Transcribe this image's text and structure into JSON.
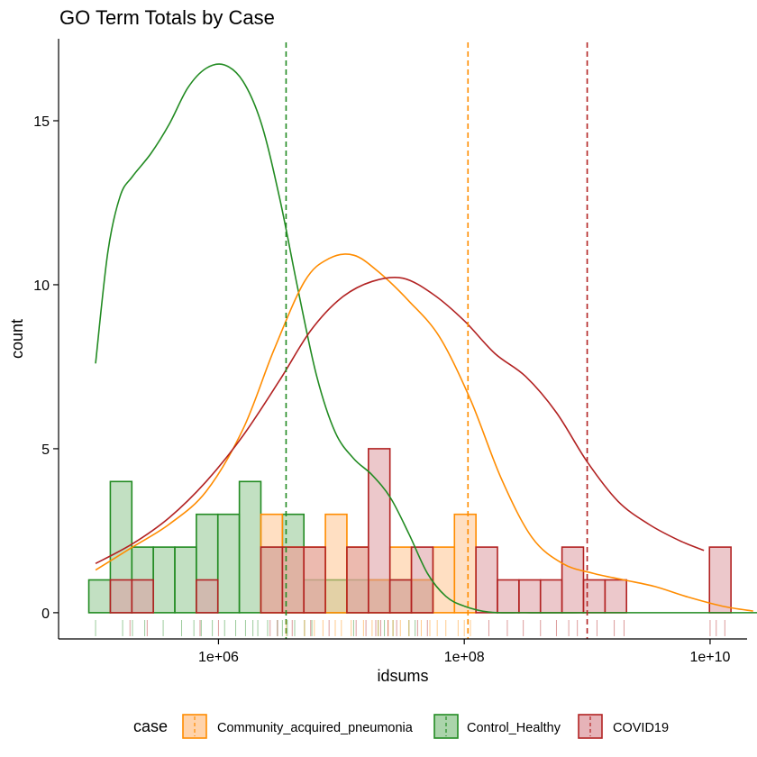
{
  "chart_data": {
    "type": "histogram",
    "title": "GO Term Totals by Case",
    "xlabel": "idsums",
    "ylabel": "count",
    "x_scale": "log10",
    "xlim": [
      50000,
      20000000000
    ],
    "ylim": [
      -0.8,
      17.5
    ],
    "x_ticks": [
      {
        "value": 1000000,
        "label": "1e+06"
      },
      {
        "value": 100000000,
        "label": "1e+08"
      },
      {
        "value": 10000000000,
        "label": "1e+10"
      }
    ],
    "y_ticks": [
      {
        "value": 0,
        "label": "0"
      },
      {
        "value": 5,
        "label": "5"
      },
      {
        "value": 10,
        "label": "10"
      },
      {
        "value": 15,
        "label": "15"
      }
    ],
    "grid": false,
    "legend": {
      "title": "case",
      "position": "bottom"
    },
    "series": [
      {
        "name": "Control_Healthy",
        "fill": "#8fc68f",
        "line": "#228B22",
        "mean_log10": 6.55,
        "bins": [
          {
            "log10_lo": 4.945,
            "log10_hi": 5.12,
            "count": 1
          },
          {
            "log10_lo": 5.12,
            "log10_hi": 5.295,
            "count": 4
          },
          {
            "log10_lo": 5.295,
            "log10_hi": 5.47,
            "count": 2
          },
          {
            "log10_lo": 5.47,
            "log10_hi": 5.645,
            "count": 2
          },
          {
            "log10_lo": 5.645,
            "log10_hi": 5.82,
            "count": 2
          },
          {
            "log10_lo": 5.82,
            "log10_hi": 5.995,
            "count": 3
          },
          {
            "log10_lo": 5.995,
            "log10_hi": 6.17,
            "count": 3
          },
          {
            "log10_lo": 6.17,
            "log10_hi": 6.345,
            "count": 4
          },
          {
            "log10_lo": 6.345,
            "log10_hi": 6.52,
            "count": 2
          },
          {
            "log10_lo": 6.52,
            "log10_hi": 6.695,
            "count": 3
          },
          {
            "log10_lo": 6.695,
            "log10_hi": 6.87,
            "count": 1
          },
          {
            "log10_lo": 6.87,
            "log10_hi": 7.045,
            "count": 1
          },
          {
            "log10_lo": 7.045,
            "log10_hi": 7.22,
            "count": 1
          },
          {
            "log10_lo": 7.22,
            "log10_hi": 7.395,
            "count": 1
          },
          {
            "log10_lo": 7.395,
            "log10_hi": 7.57,
            "count": 1
          },
          {
            "log10_lo": 7.57,
            "log10_hi": 7.745,
            "count": 1
          }
        ],
        "density": [
          [
            5.0,
            7.6
          ],
          [
            5.1,
            11.0
          ],
          [
            5.2,
            12.7
          ],
          [
            5.3,
            13.3
          ],
          [
            5.45,
            14.0
          ],
          [
            5.6,
            14.9
          ],
          [
            5.75,
            16.0
          ],
          [
            5.9,
            16.6
          ],
          [
            6.05,
            16.7
          ],
          [
            6.2,
            16.2
          ],
          [
            6.35,
            14.9
          ],
          [
            6.5,
            12.6
          ],
          [
            6.65,
            9.8
          ],
          [
            6.8,
            7.2
          ],
          [
            6.95,
            5.5
          ],
          [
            7.1,
            4.7
          ],
          [
            7.25,
            4.2
          ],
          [
            7.4,
            3.5
          ],
          [
            7.55,
            2.4
          ],
          [
            7.7,
            1.2
          ],
          [
            7.85,
            0.5
          ],
          [
            8.0,
            0.2
          ],
          [
            8.2,
            0.02
          ],
          [
            8.5,
            0
          ],
          [
            9.0,
            0
          ],
          [
            10.0,
            0
          ],
          [
            11.0,
            0
          ]
        ],
        "rug": [
          5.0,
          5.22,
          5.3,
          5.4,
          5.55,
          5.7,
          5.8,
          5.86,
          5.95,
          6.05,
          6.14,
          6.22,
          6.28,
          6.32,
          6.4,
          6.48,
          6.52,
          6.56,
          6.62,
          6.7,
          6.76,
          7.1,
          7.3,
          7.35,
          7.42,
          7.55,
          7.6
        ]
      },
      {
        "name": "Community_acquired_pneumonia",
        "fill": "#ffc48f",
        "line": "#ff8c00",
        "mean_log10": 8.03,
        "bins": [
          {
            "log10_lo": 6.345,
            "log10_hi": 6.52,
            "count": 3
          },
          {
            "log10_lo": 6.52,
            "log10_hi": 6.695,
            "count": 2
          },
          {
            "log10_lo": 6.695,
            "log10_hi": 6.87,
            "count": 2
          },
          {
            "log10_lo": 6.87,
            "log10_hi": 7.045,
            "count": 3
          },
          {
            "log10_lo": 7.045,
            "log10_hi": 7.22,
            "count": 2
          },
          {
            "log10_lo": 7.22,
            "log10_hi": 7.395,
            "count": 1
          },
          {
            "log10_lo": 7.395,
            "log10_hi": 7.57,
            "count": 2
          },
          {
            "log10_lo": 7.57,
            "log10_hi": 7.745,
            "count": 1
          },
          {
            "log10_lo": 7.745,
            "log10_hi": 7.92,
            "count": 2
          },
          {
            "log10_lo": 7.92,
            "log10_hi": 8.095,
            "count": 3
          }
        ],
        "density": [
          [
            5.0,
            1.3
          ],
          [
            5.3,
            2.0
          ],
          [
            5.6,
            2.7
          ],
          [
            5.9,
            3.7
          ],
          [
            6.2,
            5.6
          ],
          [
            6.45,
            8.0
          ],
          [
            6.7,
            10.1
          ],
          [
            6.9,
            10.8
          ],
          [
            7.1,
            10.9
          ],
          [
            7.3,
            10.4
          ],
          [
            7.55,
            9.5
          ],
          [
            7.8,
            8.4
          ],
          [
            8.05,
            6.5
          ],
          [
            8.3,
            4.1
          ],
          [
            8.55,
            2.3
          ],
          [
            8.8,
            1.5
          ],
          [
            9.05,
            1.2
          ],
          [
            9.3,
            1.0
          ],
          [
            9.55,
            0.8
          ],
          [
            9.8,
            0.5
          ],
          [
            10.1,
            0.2
          ],
          [
            10.35,
            0.05
          ]
        ],
        "rug": [
          6.55,
          6.7,
          6.78,
          6.85,
          6.95,
          7.0,
          7.08,
          7.18,
          7.25,
          7.3,
          7.38,
          7.42,
          7.48,
          7.55,
          7.65,
          7.72,
          7.78,
          7.85,
          7.95,
          8.0,
          8.05
        ]
      },
      {
        "name": "COVID19",
        "fill": "#dd9aa0",
        "line": "#b22222",
        "mean_log10": 9.0,
        "bins": [
          {
            "log10_lo": 5.12,
            "log10_hi": 5.295,
            "count": 1
          },
          {
            "log10_lo": 5.295,
            "log10_hi": 5.47,
            "count": 1
          },
          {
            "log10_lo": 5.82,
            "log10_hi": 5.995,
            "count": 1
          },
          {
            "log10_lo": 6.345,
            "log10_hi": 6.52,
            "count": 2
          },
          {
            "log10_lo": 6.52,
            "log10_hi": 6.695,
            "count": 2
          },
          {
            "log10_lo": 6.695,
            "log10_hi": 6.87,
            "count": 2
          },
          {
            "log10_lo": 7.045,
            "log10_hi": 7.22,
            "count": 2
          },
          {
            "log10_lo": 7.22,
            "log10_hi": 7.395,
            "count": 5
          },
          {
            "log10_lo": 7.395,
            "log10_hi": 7.57,
            "count": 1
          },
          {
            "log10_lo": 7.57,
            "log10_hi": 7.745,
            "count": 2
          },
          {
            "log10_lo": 8.095,
            "log10_hi": 8.27,
            "count": 2
          },
          {
            "log10_lo": 8.27,
            "log10_hi": 8.445,
            "count": 1
          },
          {
            "log10_lo": 8.445,
            "log10_hi": 8.62,
            "count": 1
          },
          {
            "log10_lo": 8.62,
            "log10_hi": 8.795,
            "count": 1
          },
          {
            "log10_lo": 8.795,
            "log10_hi": 8.97,
            "count": 2
          },
          {
            "log10_lo": 8.97,
            "log10_hi": 9.145,
            "count": 1
          },
          {
            "log10_lo": 9.145,
            "log10_hi": 9.32,
            "count": 1
          },
          {
            "log10_lo": 9.995,
            "log10_hi": 10.17,
            "count": 2
          }
        ],
        "density": [
          [
            5.0,
            1.5
          ],
          [
            5.3,
            2.1
          ],
          [
            5.6,
            2.9
          ],
          [
            5.9,
            4.0
          ],
          [
            6.2,
            5.4
          ],
          [
            6.5,
            7.1
          ],
          [
            6.75,
            8.6
          ],
          [
            7.0,
            9.6
          ],
          [
            7.25,
            10.1
          ],
          [
            7.5,
            10.2
          ],
          [
            7.75,
            9.7
          ],
          [
            8.0,
            8.9
          ],
          [
            8.25,
            7.9
          ],
          [
            8.5,
            7.2
          ],
          [
            8.75,
            6.1
          ],
          [
            9.0,
            4.6
          ],
          [
            9.25,
            3.4
          ],
          [
            9.5,
            2.7
          ],
          [
            9.75,
            2.2
          ],
          [
            9.95,
            1.9
          ]
        ],
        "rug": [
          5.28,
          5.42,
          5.85,
          6.0,
          6.42,
          6.48,
          6.6,
          6.75,
          6.9,
          7.12,
          7.2,
          7.28,
          7.32,
          7.38,
          7.45,
          7.62,
          7.7,
          8.2,
          8.35,
          8.48,
          8.62,
          8.75,
          8.85,
          8.92,
          9.08,
          9.22,
          9.3,
          10.0,
          10.05,
          10.12
        ]
      }
    ]
  }
}
